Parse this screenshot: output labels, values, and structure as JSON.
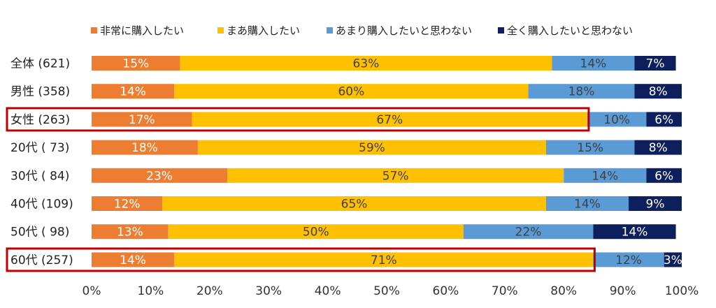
{
  "chart_data": {
    "type": "bar",
    "orientation": "horizontal",
    "stacked": true,
    "normalized_percent": true,
    "categories": [
      "全体 (621)",
      "男性 (358)",
      "女性 (263)",
      "20代 ( 73)",
      "30代 ( 84)",
      "40代 (109)",
      "50代 ( 98)",
      "60代 (257)"
    ],
    "series": [
      {
        "name": "非常に購入したい",
        "color": "#ED7D31",
        "values": [
          15,
          14,
          17,
          18,
          23,
          12,
          13,
          14
        ],
        "labels": [
          "15%",
          "14%",
          "17%",
          "18%",
          "23%",
          "12%",
          "13%",
          "14%"
        ]
      },
      {
        "name": "まあ購入したい",
        "color": "#FFC000",
        "values": [
          63,
          60,
          67,
          59,
          57,
          65,
          50,
          71
        ],
        "labels": [
          "63%",
          "60%",
          "67%",
          "59%",
          "57%",
          "65%",
          "50%",
          "71%"
        ]
      },
      {
        "name": "あまり購入したいと思わない",
        "color": "#5B9BD5",
        "values": [
          14,
          18,
          10,
          15,
          14,
          14,
          22,
          12
        ],
        "labels": [
          "14%",
          "18%",
          "10%",
          "15%",
          "14%",
          "14%",
          "22%",
          "12%"
        ]
      },
      {
        "name": "全く購入したいと思わない",
        "color": "#0D1F5C",
        "values": [
          7,
          8,
          6,
          8,
          6,
          9,
          14,
          3
        ],
        "labels": [
          "7%",
          "8%",
          "6%",
          "8%",
          "6%",
          "9%",
          "14%",
          "3%"
        ]
      }
    ],
    "label_colors": [
      "#FFFFFF",
      "#404040",
      "#404040",
      "#FFFFFF"
    ],
    "x_ticks": [
      "0%",
      "10%",
      "20%",
      "30%",
      "40%",
      "50%",
      "60%",
      "70%",
      "80%",
      "90%",
      "100%"
    ],
    "xlim": [
      0,
      100
    ],
    "highlighted_categories": [
      "女性 (263)",
      "60代 (257)"
    ],
    "highlight_color": "#C00000",
    "legend_position": "top",
    "grid": false,
    "title": "",
    "xlabel": "",
    "ylabel": ""
  }
}
